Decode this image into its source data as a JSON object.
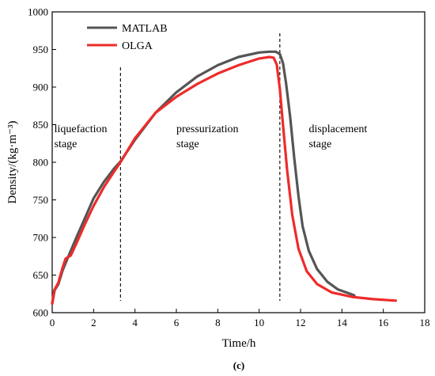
{
  "chart_data": {
    "type": "line",
    "panel_label": "(c)",
    "xlabel": "Time/h",
    "ylabel": "Density/(kg·m⁻³)",
    "xlim": [
      0,
      18
    ],
    "ylim": [
      600,
      1000
    ],
    "x_ticks": [
      0,
      2,
      4,
      6,
      8,
      10,
      12,
      14,
      16,
      18
    ],
    "y_ticks": [
      600,
      650,
      700,
      750,
      800,
      850,
      900,
      950,
      1000
    ],
    "grid": false,
    "legend_position": "top-left",
    "series": [
      {
        "name": "MATLAB",
        "color": "#555555",
        "points": [
          [
            0.0,
            612
          ],
          [
            0.12,
            630
          ],
          [
            0.3,
            638
          ],
          [
            0.5,
            656
          ],
          [
            0.8,
            676
          ],
          [
            1.2,
            702
          ],
          [
            1.6,
            727
          ],
          [
            2.0,
            752
          ],
          [
            2.5,
            774
          ],
          [
            3.0,
            792
          ],
          [
            3.3,
            801
          ],
          [
            4.0,
            830
          ],
          [
            5.0,
            866
          ],
          [
            6.0,
            893
          ],
          [
            7.0,
            914
          ],
          [
            8.0,
            929
          ],
          [
            9.0,
            940
          ],
          [
            10.0,
            946
          ],
          [
            10.5,
            947
          ],
          [
            10.8,
            947
          ],
          [
            11.0,
            944
          ],
          [
            11.15,
            932
          ],
          [
            11.3,
            905
          ],
          [
            11.5,
            860
          ],
          [
            11.7,
            805
          ],
          [
            11.9,
            755
          ],
          [
            12.1,
            715
          ],
          [
            12.4,
            682
          ],
          [
            12.8,
            658
          ],
          [
            13.3,
            641
          ],
          [
            13.8,
            631
          ],
          [
            14.3,
            626
          ],
          [
            14.6,
            623
          ]
        ]
      },
      {
        "name": "OLGA",
        "color": "#ee2b2b",
        "points": [
          [
            0.0,
            612
          ],
          [
            0.1,
            630
          ],
          [
            0.3,
            640
          ],
          [
            0.5,
            660
          ],
          [
            0.65,
            672
          ],
          [
            0.9,
            676
          ],
          [
            1.2,
            694
          ],
          [
            1.6,
            719
          ],
          [
            2.0,
            742
          ],
          [
            2.5,
            767
          ],
          [
            3.0,
            788
          ],
          [
            3.3,
            800
          ],
          [
            4.0,
            832
          ],
          [
            5.0,
            866
          ],
          [
            6.0,
            887
          ],
          [
            7.0,
            904
          ],
          [
            8.0,
            918
          ],
          [
            9.0,
            929
          ],
          [
            10.0,
            938
          ],
          [
            10.5,
            940
          ],
          [
            10.7,
            939
          ],
          [
            10.85,
            930
          ],
          [
            11.0,
            898
          ],
          [
            11.15,
            850
          ],
          [
            11.35,
            790
          ],
          [
            11.6,
            730
          ],
          [
            11.9,
            685
          ],
          [
            12.3,
            655
          ],
          [
            12.8,
            638
          ],
          [
            13.5,
            627
          ],
          [
            14.5,
            621
          ],
          [
            15.5,
            618
          ],
          [
            16.6,
            616
          ]
        ]
      }
    ],
    "dividers": [
      3.3,
      11.0
    ],
    "annotations": [
      {
        "lines": [
          "liquefaction",
          "stage"
        ],
        "x": 0.1,
        "y": 840
      },
      {
        "lines": [
          "pressurization",
          "stage"
        ],
        "x": 6.0,
        "y": 840
      },
      {
        "lines": [
          "displacement",
          "stage"
        ],
        "x": 12.4,
        "y": 840
      }
    ]
  }
}
